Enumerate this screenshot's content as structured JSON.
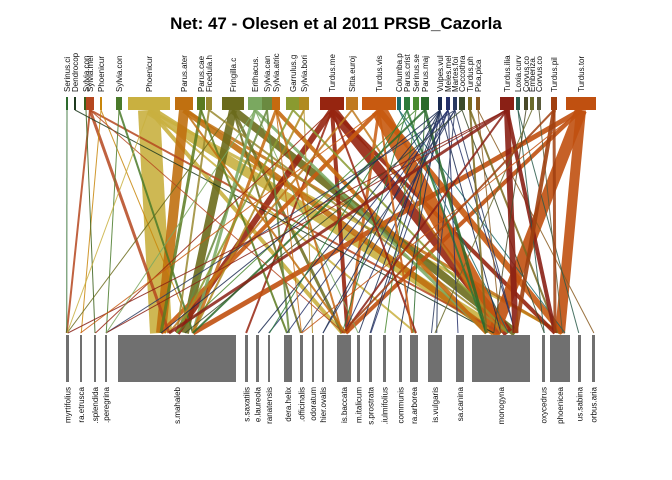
{
  "title": "Net: 47 - Olesen et al 2011 PRSB_Cazorla",
  "top_nodes": [
    {
      "label": "Serinus.ci",
      "color": "#2e6b2e"
    },
    {
      "label": "Dendrocop",
      "color": "#1f3a1f"
    },
    {
      "label": "Sylvia.con",
      "color": "#3a5f1a"
    },
    {
      "label": "Sylvia.mel",
      "color": "#b5471f"
    },
    {
      "label": "Phoenicur",
      "color": "#c8860a"
    },
    {
      "label": "Sylvia.con",
      "color": "#4a7a2a"
    },
    {
      "label": "Phoenicur",
      "color": "#c9b040"
    },
    {
      "label": "Parus.ater",
      "color": "#c07010"
    },
    {
      "label": "Parus.cae",
      "color": "#5a7a20"
    },
    {
      "label": "Ficedula.h",
      "color": "#9a8a30"
    },
    {
      "label": "Fringilla.c",
      "color": "#6b6b1c"
    },
    {
      "label": "Erithacus.",
      "color": "#7aa860"
    },
    {
      "label": "Sylvia.can",
      "color": "#6a8a40"
    },
    {
      "label": "Sylvia.atric",
      "color": "#c56a10"
    },
    {
      "label": "Garrulus.g",
      "color": "#8a9a30"
    },
    {
      "label": "Sylvia.bori",
      "color": "#b08a20"
    },
    {
      "label": "Turdus.me",
      "color": "#962510"
    },
    {
      "label": "Sitta.euroj",
      "color": "#c07a20"
    },
    {
      "label": "Turdus.vis",
      "color": "#c85a10"
    },
    {
      "label": "Columba.p",
      "color": "#1a6a6a"
    },
    {
      "label": "Parus.crist",
      "color": "#2a7a3a"
    },
    {
      "label": "Serinus.se",
      "color": "#4a8a30"
    },
    {
      "label": "Parus.maj",
      "color": "#2a6a2a"
    },
    {
      "label": "Vulpes.vul",
      "color": "#1a2a50"
    },
    {
      "label": "Meles.mel",
      "color": "#24306a"
    },
    {
      "label": "Martes.foi",
      "color": "#2a3a60"
    },
    {
      "label": "Coccothra",
      "color": "#3a4a2a"
    },
    {
      "label": "Turdus.ph",
      "color": "#7a6a20"
    },
    {
      "label": "Pica.pica",
      "color": "#8a5a20"
    },
    {
      "label": "Turdus.ilia",
      "color": "#8a2015"
    },
    {
      "label": "Loxia.curv",
      "color": "#2a5a4a"
    },
    {
      "label": "Corvus.co",
      "color": "#4a4a2a"
    },
    {
      "label": "Emberiza.",
      "color": "#6a6a2a"
    },
    {
      "label": "Corvus.co",
      "color": "#5a5a3a"
    },
    {
      "label": "Turdus.pil",
      "color": "#a04010"
    },
    {
      "label": "Turdus.tor",
      "color": "#c05010"
    }
  ],
  "bottom_nodes": [
    {
      "label": "myrtifolius"
    },
    {
      "label": "ra.etrusca"
    },
    {
      "label": ".splendida"
    },
    {
      "label": ".peregrina"
    },
    {
      "label": "s.mahaleb"
    },
    {
      "label": "s.saxatilis"
    },
    {
      "label": "e.laureola"
    },
    {
      "label": "ranatensis"
    },
    {
      "label": "dera.helix"
    },
    {
      "label": ".officinalis"
    },
    {
      "label": "odoratum"
    },
    {
      "label": "hier.ovalis"
    },
    {
      "label": "is.baccata"
    },
    {
      "label": "m.italicum"
    },
    {
      "label": "s.prostrata"
    },
    {
      "label": ".iulmifolius"
    },
    {
      "label": "communis"
    },
    {
      "label": "ra.arborea"
    },
    {
      "label": "is.vulgaris"
    },
    {
      "label": "sa.canina"
    },
    {
      "label": "monogyna"
    },
    {
      "label": "oxycedrus"
    },
    {
      "label": "phoenicea"
    },
    {
      "label": "us.sabina"
    },
    {
      "label": "orbus.aria"
    }
  ]
}
